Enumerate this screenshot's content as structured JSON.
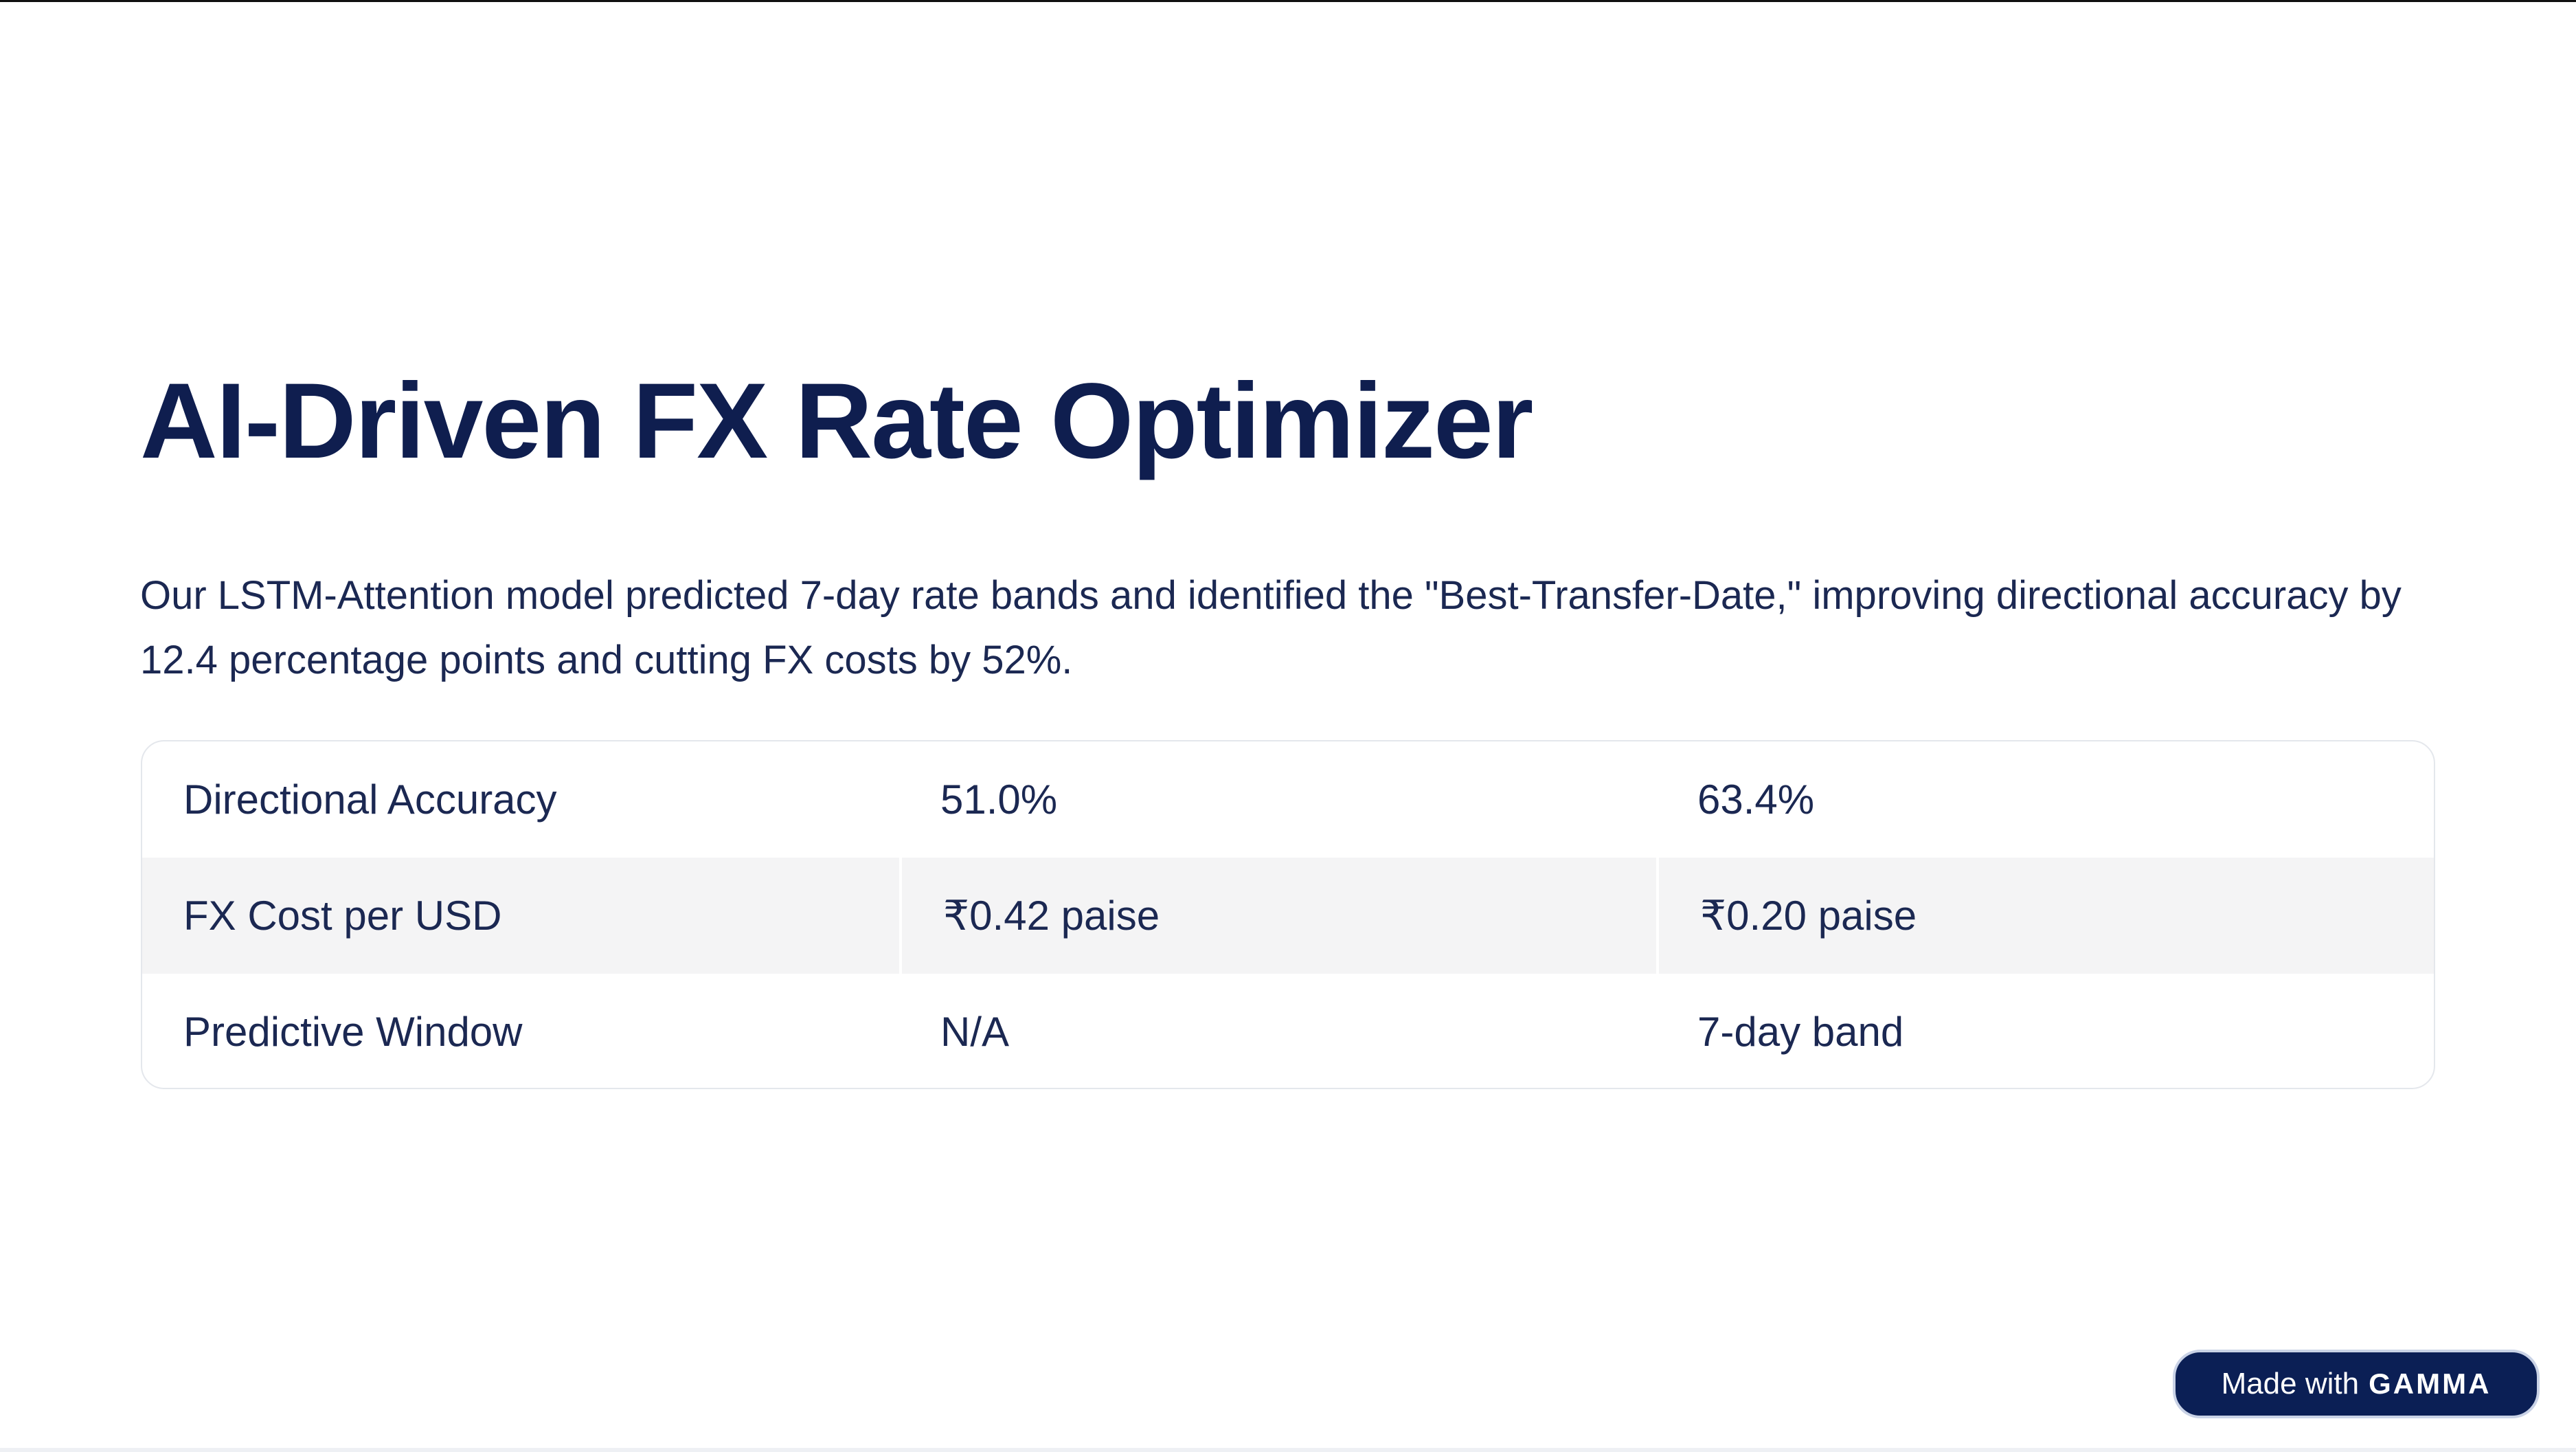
{
  "slide": {
    "title": "AI-Driven FX Rate Optimizer",
    "description": "Our LSTM-Attention model predicted 7-day rate bands and identified the \"Best-Transfer-Date,\" improving directional accuracy by 12.4 percentage points and cutting FX costs by 52%."
  },
  "table": {
    "rows": [
      {
        "metric": "Directional Accuracy",
        "baseline": "51.0%",
        "model": "63.4%"
      },
      {
        "metric": "FX Cost per USD",
        "baseline": "₹0.42 paise",
        "model": "₹0.20 paise"
      },
      {
        "metric": "Predictive Window",
        "baseline": "N/A",
        "model": "7-day band"
      }
    ]
  },
  "badge": {
    "prefix": "Made with",
    "brand": "GAMMA"
  },
  "colors": {
    "title": "#0f1e4f",
    "text": "#1b2852",
    "shaded_row": "#f4f4f5",
    "badge_background": "#0b1f55"
  }
}
